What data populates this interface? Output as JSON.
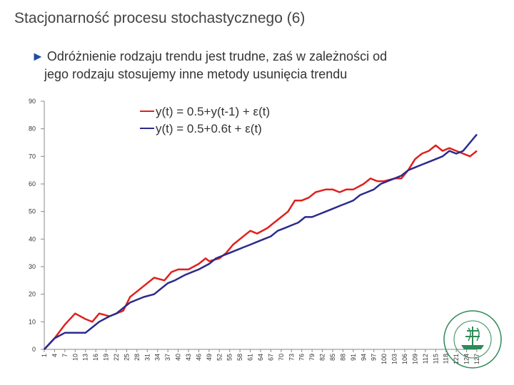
{
  "slide": {
    "title": "Stacjonarność procesu stochastycznego (6)",
    "bullet_line1": "Odróżnienie rodzaju trendu jest trudne, zaś w zależności od",
    "bullet_line2": "jego rodzaju stosujemy inne metody usunięcia trendu",
    "logo_text": "SZKOŁA GŁÓWNA HANDLOWA W WARSZAWIE"
  },
  "colors": {
    "red": "#e0201c",
    "navy": "#2b2b8c",
    "logo": "#2e8b57"
  },
  "chart_data": {
    "type": "line",
    "title": "",
    "xlabel": "",
    "ylabel": "",
    "ylim": [
      0,
      90
    ],
    "yticks": [
      0,
      10,
      20,
      30,
      40,
      50,
      60,
      70,
      80,
      90
    ],
    "xlim": [
      1,
      127
    ],
    "xticks": [
      1,
      4,
      7,
      10,
      13,
      16,
      19,
      22,
      25,
      28,
      31,
      34,
      37,
      40,
      43,
      46,
      49,
      52,
      55,
      58,
      61,
      64,
      67,
      70,
      73,
      76,
      79,
      82,
      85,
      88,
      91,
      94,
      97,
      100,
      103,
      106,
      109,
      112,
      115,
      118,
      121,
      124,
      127
    ],
    "grid": false,
    "legend": "top-center",
    "series": [
      {
        "name": "y(t) = 0.5+y(t-1) + ε(t)",
        "color": "#e0201c",
        "points": [
          [
            1,
            0
          ],
          [
            4,
            4
          ],
          [
            7,
            9
          ],
          [
            10,
            13
          ],
          [
            13,
            11
          ],
          [
            15,
            10
          ],
          [
            17,
            13
          ],
          [
            20,
            12
          ],
          [
            22,
            13
          ],
          [
            24,
            14
          ],
          [
            26,
            19
          ],
          [
            28,
            21
          ],
          [
            31,
            24
          ],
          [
            33,
            26
          ],
          [
            36,
            25
          ],
          [
            38,
            28
          ],
          [
            40,
            29
          ],
          [
            43,
            29
          ],
          [
            46,
            31
          ],
          [
            48,
            33
          ],
          [
            49,
            32
          ],
          [
            52,
            33
          ],
          [
            54,
            35
          ],
          [
            56,
            38
          ],
          [
            58,
            40
          ],
          [
            61,
            43
          ],
          [
            63,
            42
          ],
          [
            66,
            44
          ],
          [
            68,
            46
          ],
          [
            70,
            48
          ],
          [
            72,
            50
          ],
          [
            74,
            54
          ],
          [
            76,
            54
          ],
          [
            78,
            55
          ],
          [
            80,
            57
          ],
          [
            83,
            58
          ],
          [
            85,
            58
          ],
          [
            87,
            57
          ],
          [
            89,
            58
          ],
          [
            91,
            58
          ],
          [
            94,
            60
          ],
          [
            96,
            62
          ],
          [
            98,
            61
          ],
          [
            100,
            61
          ],
          [
            103,
            62
          ],
          [
            105,
            62
          ],
          [
            107,
            65
          ],
          [
            109,
            69
          ],
          [
            111,
            71
          ],
          [
            113,
            72
          ],
          [
            115,
            74
          ],
          [
            117,
            72
          ],
          [
            119,
            73
          ],
          [
            121,
            72
          ],
          [
            123,
            71
          ],
          [
            125,
            70
          ],
          [
            127,
            72
          ]
        ]
      },
      {
        "name": "y(t) = 0.5+0.6t + ε(t)",
        "color": "#2b2b8c",
        "points": [
          [
            1,
            0
          ],
          [
            4,
            4
          ],
          [
            7,
            6
          ],
          [
            10,
            6
          ],
          [
            13,
            6
          ],
          [
            15,
            8
          ],
          [
            17,
            10
          ],
          [
            20,
            12
          ],
          [
            22,
            13
          ],
          [
            24,
            15
          ],
          [
            26,
            17
          ],
          [
            28,
            18
          ],
          [
            30,
            19
          ],
          [
            33,
            20
          ],
          [
            35,
            22
          ],
          [
            37,
            24
          ],
          [
            39,
            25
          ],
          [
            42,
            27
          ],
          [
            44,
            28
          ],
          [
            46,
            29
          ],
          [
            49,
            31
          ],
          [
            51,
            33
          ],
          [
            53,
            34
          ],
          [
            55,
            35
          ],
          [
            57,
            36
          ],
          [
            59,
            37
          ],
          [
            61,
            38
          ],
          [
            63,
            39
          ],
          [
            65,
            40
          ],
          [
            67,
            41
          ],
          [
            69,
            43
          ],
          [
            71,
            44
          ],
          [
            73,
            45
          ],
          [
            75,
            46
          ],
          [
            77,
            48
          ],
          [
            79,
            48
          ],
          [
            81,
            49
          ],
          [
            83,
            50
          ],
          [
            85,
            51
          ],
          [
            87,
            52
          ],
          [
            89,
            53
          ],
          [
            91,
            54
          ],
          [
            93,
            56
          ],
          [
            95,
            57
          ],
          [
            97,
            58
          ],
          [
            99,
            60
          ],
          [
            101,
            61
          ],
          [
            103,
            62
          ],
          [
            105,
            63
          ],
          [
            107,
            65
          ],
          [
            109,
            66
          ],
          [
            111,
            67
          ],
          [
            113,
            68
          ],
          [
            115,
            69
          ],
          [
            117,
            70
          ],
          [
            119,
            72
          ],
          [
            121,
            71
          ],
          [
            123,
            72
          ],
          [
            125,
            75
          ],
          [
            127,
            78
          ]
        ]
      }
    ]
  }
}
